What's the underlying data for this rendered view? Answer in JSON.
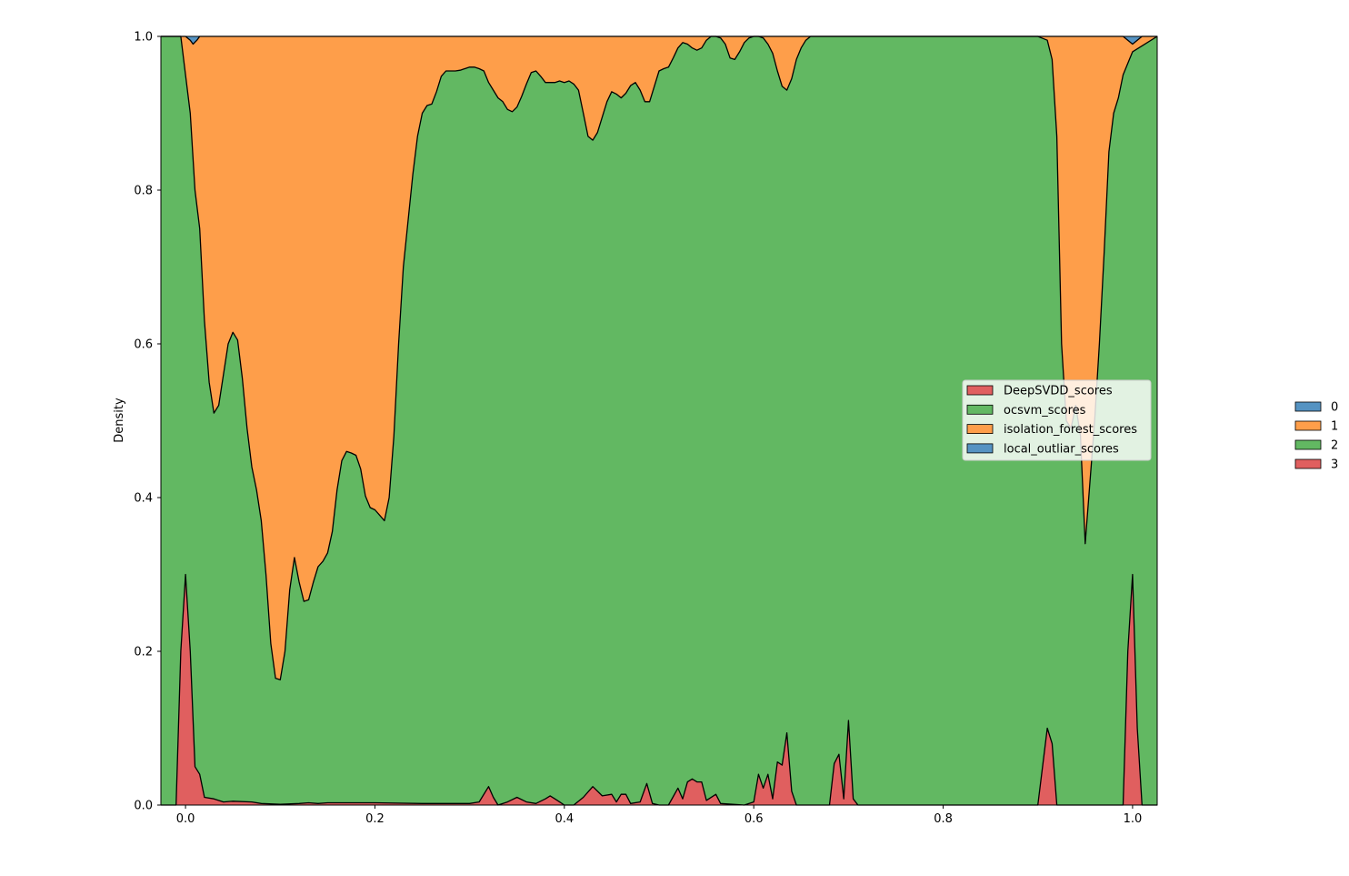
{
  "chart_data": {
    "type": "area",
    "title": "",
    "xlabel": "",
    "ylabel": "Density",
    "xlim": [
      -0.026,
      1.026
    ],
    "ylim": [
      0.0,
      1.0
    ],
    "x_ticks": [
      "0.0",
      "0.2",
      "0.4",
      "0.6",
      "0.8",
      "1.0"
    ],
    "y_ticks": [
      "0.0",
      "0.2",
      "0.4",
      "0.6",
      "0.8",
      "1.0"
    ],
    "grid": false,
    "stacking": "fill",
    "colors": {
      "0": "#5593c2",
      "1": "#fe9e4a",
      "2": "#62b862",
      "3": "#e05f5f"
    },
    "legend_inside": {
      "placement": "center-right",
      "entries": [
        {
          "label": "DeepSVDD_scores",
          "color": "#e05f5f"
        },
        {
          "label": "ocsvm_scores",
          "color": "#62b862"
        },
        {
          "label": "isolation_forest_scores",
          "color": "#fe9e4a"
        },
        {
          "label": "local_outliar_scores",
          "color": "#5593c2"
        }
      ]
    },
    "legend_outside": {
      "placement": "outside-right",
      "entries": [
        {
          "label": "0",
          "color": "#5593c2"
        },
        {
          "label": "1",
          "color": "#fe9e4a"
        },
        {
          "label": "2",
          "color": "#62b862"
        },
        {
          "label": "3",
          "color": "#e05f5f"
        }
      ]
    },
    "boundaries": [
      {
        "name": "3|2",
        "points": [
          [
            -0.026,
            0
          ],
          [
            -0.01,
            0
          ],
          [
            -0.005,
            0.2
          ],
          [
            0.0,
            0.3
          ],
          [
            0.005,
            0.2
          ],
          [
            0.01,
            0.05
          ],
          [
            0.015,
            0.04
          ],
          [
            0.02,
            0.01
          ],
          [
            0.03,
            0.008
          ],
          [
            0.04,
            0.004
          ],
          [
            0.05,
            0.005
          ],
          [
            0.07,
            0.004
          ],
          [
            0.08,
            0.002
          ],
          [
            0.1,
            0.001
          ],
          [
            0.12,
            0.002
          ],
          [
            0.13,
            0.003
          ],
          [
            0.14,
            0.002
          ],
          [
            0.15,
            0.003
          ],
          [
            0.2,
            0.003
          ],
          [
            0.25,
            0.002
          ],
          [
            0.3,
            0.002
          ],
          [
            0.31,
            0.004
          ],
          [
            0.32,
            0.024
          ],
          [
            0.325,
            0.01
          ],
          [
            0.33,
            0
          ],
          [
            0.34,
            0.004
          ],
          [
            0.35,
            0.01
          ],
          [
            0.36,
            0.004
          ],
          [
            0.37,
            0.002
          ],
          [
            0.38,
            0.008
          ],
          [
            0.385,
            0.012
          ],
          [
            0.39,
            0.008
          ],
          [
            0.395,
            0.004
          ],
          [
            0.4,
            0
          ],
          [
            0.41,
            0
          ],
          [
            0.42,
            0.01
          ],
          [
            0.43,
            0.024
          ],
          [
            0.44,
            0.012
          ],
          [
            0.45,
            0.014
          ],
          [
            0.455,
            0.004
          ],
          [
            0.46,
            0.014
          ],
          [
            0.465,
            0.014
          ],
          [
            0.47,
            0.002
          ],
          [
            0.48,
            0.004
          ],
          [
            0.487,
            0.028
          ],
          [
            0.493,
            0.002
          ],
          [
            0.5,
            0
          ],
          [
            0.51,
            0
          ],
          [
            0.52,
            0.022
          ],
          [
            0.525,
            0.008
          ],
          [
            0.53,
            0.03
          ],
          [
            0.535,
            0.034
          ],
          [
            0.54,
            0.03
          ],
          [
            0.545,
            0.03
          ],
          [
            0.55,
            0.006
          ],
          [
            0.56,
            0.014
          ],
          [
            0.565,
            0.002
          ],
          [
            0.59,
            0
          ],
          [
            0.6,
            0.004
          ],
          [
            0.605,
            0.04
          ],
          [
            0.61,
            0.022
          ],
          [
            0.615,
            0.04
          ],
          [
            0.62,
            0.008
          ],
          [
            0.625,
            0.056
          ],
          [
            0.63,
            0.052
          ],
          [
            0.635,
            0.094
          ],
          [
            0.64,
            0.018
          ],
          [
            0.645,
            0
          ],
          [
            0.68,
            0
          ],
          [
            0.685,
            0.054
          ],
          [
            0.69,
            0.066
          ],
          [
            0.695,
            0.008
          ],
          [
            0.7,
            0.11
          ],
          [
            0.705,
            0.008
          ],
          [
            0.71,
            0
          ],
          [
            0.9,
            0
          ],
          [
            0.91,
            0.1
          ],
          [
            0.915,
            0.08
          ],
          [
            0.92,
            0
          ],
          [
            0.99,
            0
          ],
          [
            0.995,
            0.2
          ],
          [
            1.0,
            0.3
          ],
          [
            1.005,
            0.1
          ],
          [
            1.01,
            0
          ],
          [
            1.026,
            0
          ]
        ]
      },
      {
        "name": "2|1",
        "points": [
          [
            -0.026,
            1.0
          ],
          [
            -0.015,
            1.0
          ],
          [
            -0.005,
            1.0
          ],
          [
            0.0,
            0.95
          ],
          [
            0.005,
            0.9
          ],
          [
            0.01,
            0.8
          ],
          [
            0.015,
            0.75
          ],
          [
            0.02,
            0.63
          ],
          [
            0.025,
            0.55
          ],
          [
            0.03,
            0.51
          ],
          [
            0.035,
            0.52
          ],
          [
            0.04,
            0.56
          ],
          [
            0.045,
            0.6
          ],
          [
            0.05,
            0.615
          ],
          [
            0.055,
            0.605
          ],
          [
            0.06,
            0.555
          ],
          [
            0.065,
            0.49
          ],
          [
            0.07,
            0.44
          ],
          [
            0.075,
            0.41
          ],
          [
            0.08,
            0.37
          ],
          [
            0.085,
            0.3
          ],
          [
            0.09,
            0.21
          ],
          [
            0.095,
            0.165
          ],
          [
            0.1,
            0.163
          ],
          [
            0.105,
            0.2
          ],
          [
            0.11,
            0.28
          ],
          [
            0.115,
            0.322
          ],
          [
            0.12,
            0.29
          ],
          [
            0.125,
            0.265
          ],
          [
            0.13,
            0.267
          ],
          [
            0.135,
            0.29
          ],
          [
            0.14,
            0.31
          ],
          [
            0.145,
            0.317
          ],
          [
            0.15,
            0.328
          ],
          [
            0.155,
            0.356
          ],
          [
            0.16,
            0.41
          ],
          [
            0.165,
            0.448
          ],
          [
            0.17,
            0.46
          ],
          [
            0.175,
            0.458
          ],
          [
            0.18,
            0.455
          ],
          [
            0.185,
            0.437
          ],
          [
            0.19,
            0.402
          ],
          [
            0.195,
            0.387
          ],
          [
            0.2,
            0.384
          ],
          [
            0.205,
            0.377
          ],
          [
            0.21,
            0.37
          ],
          [
            0.215,
            0.4
          ],
          [
            0.22,
            0.48
          ],
          [
            0.225,
            0.6
          ],
          [
            0.23,
            0.7
          ],
          [
            0.235,
            0.76
          ],
          [
            0.24,
            0.82
          ],
          [
            0.245,
            0.87
          ],
          [
            0.25,
            0.9
          ],
          [
            0.255,
            0.91
          ],
          [
            0.26,
            0.912
          ],
          [
            0.265,
            0.928
          ],
          [
            0.27,
            0.948
          ],
          [
            0.275,
            0.955
          ],
          [
            0.28,
            0.955
          ],
          [
            0.285,
            0.955
          ],
          [
            0.29,
            0.956
          ],
          [
            0.295,
            0.958
          ],
          [
            0.3,
            0.96
          ],
          [
            0.305,
            0.96
          ],
          [
            0.31,
            0.958
          ],
          [
            0.315,
            0.955
          ],
          [
            0.32,
            0.94
          ],
          [
            0.325,
            0.93
          ],
          [
            0.33,
            0.92
          ],
          [
            0.335,
            0.915
          ],
          [
            0.34,
            0.905
          ],
          [
            0.345,
            0.902
          ],
          [
            0.35,
            0.908
          ],
          [
            0.355,
            0.922
          ],
          [
            0.36,
            0.938
          ],
          [
            0.365,
            0.953
          ],
          [
            0.37,
            0.955
          ],
          [
            0.375,
            0.948
          ],
          [
            0.38,
            0.94
          ],
          [
            0.39,
            0.94
          ],
          [
            0.395,
            0.942
          ],
          [
            0.4,
            0.94
          ],
          [
            0.405,
            0.942
          ],
          [
            0.41,
            0.938
          ],
          [
            0.415,
            0.93
          ],
          [
            0.42,
            0.9
          ],
          [
            0.425,
            0.87
          ],
          [
            0.43,
            0.865
          ],
          [
            0.435,
            0.875
          ],
          [
            0.44,
            0.895
          ],
          [
            0.445,
            0.915
          ],
          [
            0.45,
            0.928
          ],
          [
            0.455,
            0.925
          ],
          [
            0.46,
            0.92
          ],
          [
            0.465,
            0.926
          ],
          [
            0.47,
            0.936
          ],
          [
            0.475,
            0.94
          ],
          [
            0.48,
            0.93
          ],
          [
            0.485,
            0.915
          ],
          [
            0.49,
            0.915
          ],
          [
            0.495,
            0.935
          ],
          [
            0.5,
            0.955
          ],
          [
            0.505,
            0.958
          ],
          [
            0.51,
            0.96
          ],
          [
            0.515,
            0.972
          ],
          [
            0.52,
            0.985
          ],
          [
            0.525,
            0.992
          ],
          [
            0.53,
            0.99
          ],
          [
            0.535,
            0.985
          ],
          [
            0.54,
            0.982
          ],
          [
            0.545,
            0.985
          ],
          [
            0.55,
            0.995
          ],
          [
            0.555,
            1.0
          ],
          [
            0.56,
            1.0
          ],
          [
            0.565,
            0.998
          ],
          [
            0.57,
            0.99
          ],
          [
            0.575,
            0.972
          ],
          [
            0.58,
            0.97
          ],
          [
            0.585,
            0.98
          ],
          [
            0.59,
            0.992
          ],
          [
            0.595,
            0.998
          ],
          [
            0.6,
            1.0
          ],
          [
            0.605,
            1.0
          ],
          [
            0.61,
            0.998
          ],
          [
            0.615,
            0.99
          ],
          [
            0.62,
            0.978
          ],
          [
            0.625,
            0.955
          ],
          [
            0.63,
            0.935
          ],
          [
            0.635,
            0.93
          ],
          [
            0.64,
            0.945
          ],
          [
            0.645,
            0.97
          ],
          [
            0.65,
            0.985
          ],
          [
            0.655,
            0.995
          ],
          [
            0.66,
            1.0
          ],
          [
            0.9,
            1.0
          ],
          [
            0.91,
            0.995
          ],
          [
            0.915,
            0.97
          ],
          [
            0.92,
            0.87
          ],
          [
            0.925,
            0.6
          ],
          [
            0.93,
            0.5
          ],
          [
            0.935,
            0.49
          ],
          [
            0.94,
            0.52
          ],
          [
            0.945,
            0.48
          ],
          [
            0.95,
            0.34
          ],
          [
            0.955,
            0.42
          ],
          [
            0.96,
            0.5
          ],
          [
            0.965,
            0.6
          ],
          [
            0.97,
            0.72
          ],
          [
            0.975,
            0.85
          ],
          [
            0.98,
            0.9
          ],
          [
            0.985,
            0.92
          ],
          [
            0.99,
            0.95
          ],
          [
            1.0,
            0.98
          ],
          [
            1.026,
            1.0
          ]
        ]
      },
      {
        "name": "1|0",
        "points": [
          [
            -0.026,
            1.0
          ],
          [
            -0.01,
            1.0
          ],
          [
            -0.005,
            1.0
          ],
          [
            0.0,
            1.0
          ],
          [
            0.005,
            0.995
          ],
          [
            0.008,
            0.99
          ],
          [
            0.012,
            0.995
          ],
          [
            0.015,
            1.0
          ],
          [
            0.99,
            1.0
          ],
          [
            0.995,
            0.995
          ],
          [
            1.0,
            0.99
          ],
          [
            1.005,
            0.995
          ],
          [
            1.01,
            1.0
          ],
          [
            1.026,
            1.0
          ]
        ]
      }
    ]
  }
}
